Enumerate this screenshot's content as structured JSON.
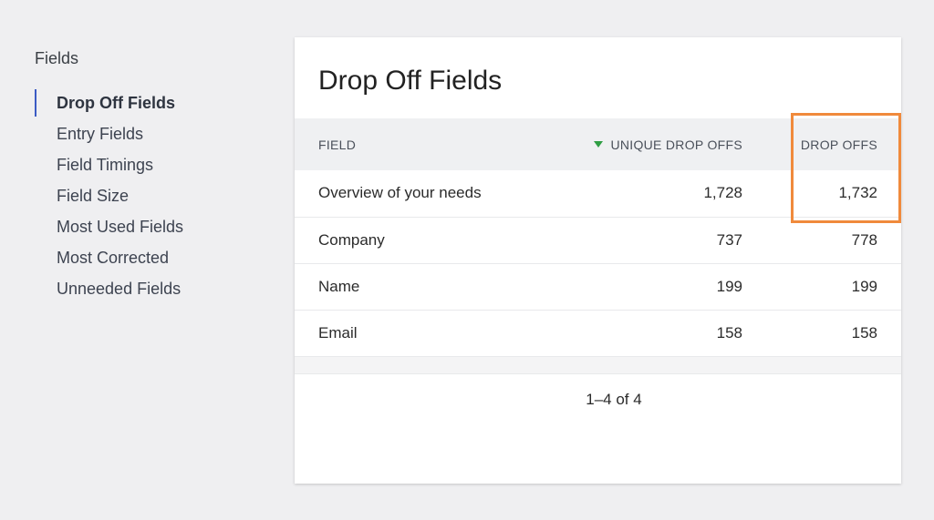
{
  "sidebar": {
    "heading": "Fields",
    "items": [
      {
        "label": "Drop Off Fields",
        "active": true
      },
      {
        "label": "Entry Fields",
        "active": false
      },
      {
        "label": "Field Timings",
        "active": false
      },
      {
        "label": "Field Size",
        "active": false
      },
      {
        "label": "Most Used Fields",
        "active": false
      },
      {
        "label": "Most Corrected",
        "active": false
      },
      {
        "label": "Unneeded Fields",
        "active": false
      }
    ]
  },
  "card": {
    "title": "Drop Off Fields",
    "columns": {
      "field": "FIELD",
      "unique": "UNIQUE DROP OFFS",
      "drop": "DROP OFFS"
    },
    "sort": {
      "column": "unique",
      "direction": "descending",
      "icon": "sort-down-icon"
    },
    "rows": [
      {
        "field": "Overview of your needs",
        "unique": "1,728",
        "drop": "1,732"
      },
      {
        "field": "Company",
        "unique": "737",
        "drop": "778"
      },
      {
        "field": "Name",
        "unique": "199",
        "drop": "199"
      },
      {
        "field": "Email",
        "unique": "158",
        "drop": "158"
      }
    ],
    "pagination": "1–4 of 4"
  },
  "colors": {
    "accent": "#3b5bc4",
    "sort_arrow": "#2f9e44",
    "highlight": "#f08a3c"
  }
}
